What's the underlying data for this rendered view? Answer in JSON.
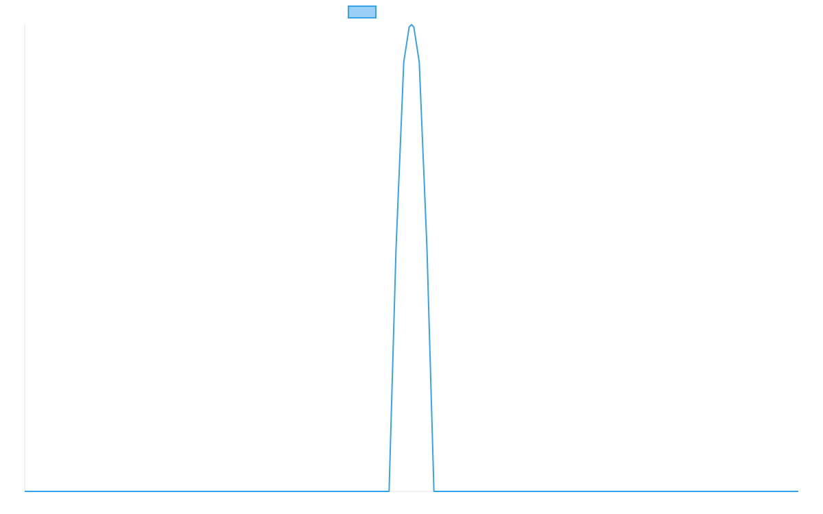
{
  "chart_data": {
    "type": "line",
    "title": "",
    "xlabel": "",
    "ylabel": "",
    "grid": false,
    "legend": {
      "position": "top-center",
      "show_label": false
    },
    "x_range": [
      0,
      100
    ],
    "y_range": [
      0,
      1
    ],
    "series": [
      {
        "color": "#36a2eb",
        "fill": "#9ad0f5",
        "x": [
          0,
          20,
          40,
          47.1,
          48,
          49,
          49.7,
          50,
          50.3,
          51,
          52,
          52.9,
          60,
          80,
          100
        ],
        "y": [
          0,
          0,
          0,
          0,
          0.52,
          0.92,
          0.995,
          1,
          0.995,
          0.92,
          0.52,
          0,
          0,
          0,
          0
        ]
      }
    ]
  }
}
